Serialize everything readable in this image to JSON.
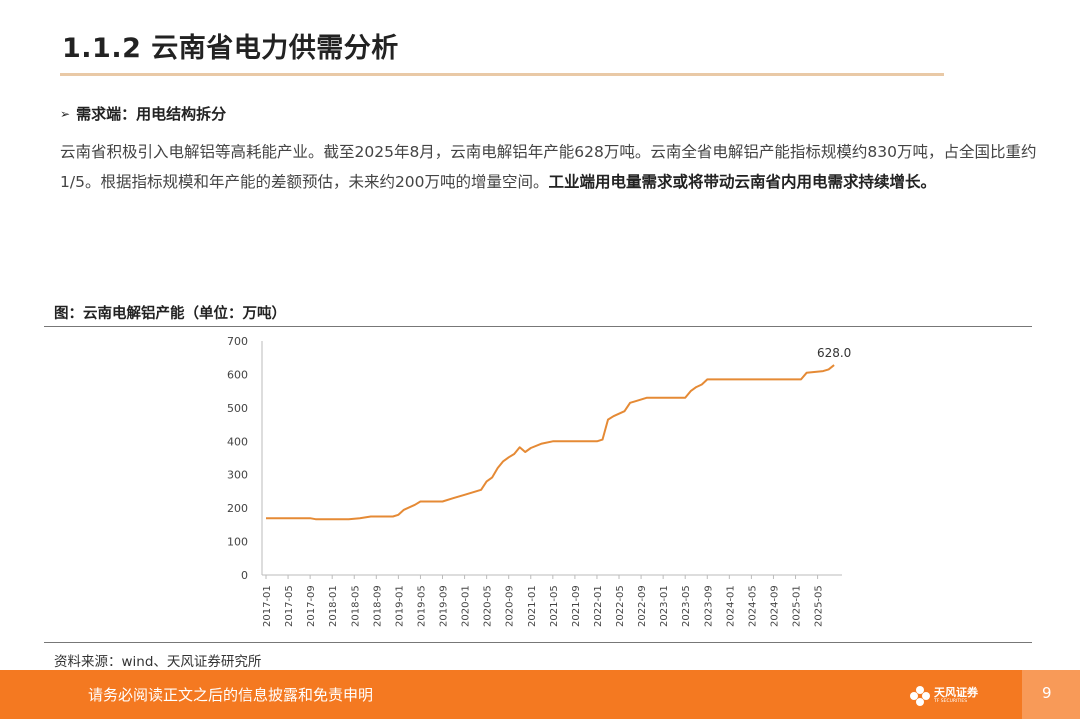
{
  "page": {
    "title": "1.1.2 云南省电力供需分析",
    "bullet": "需求端：用电结构拆分",
    "paragraph_normal": "云南省积极引入电解铝等高耗能产业。截至2025年8月，云南电解铝年产能628万吨。云南全省电解铝产能指标规模约830万吨，占全国比重约1/5。根据指标规模和年产能的差额预估，未来约200万吨的增量空间。",
    "paragraph_bold": "工业端用电量需求或将带动云南省内用电需求持续增长。",
    "figure_title": "图：云南电解铝产能（单位：万吨）",
    "source": "资料来源：wind、天风证券研究所",
    "footer_text": "请务必阅读正文之后的信息披露和免责申明",
    "logo_cn": "天风证券",
    "logo_en": "TF SECURITIES",
    "page_number": "9"
  },
  "colors": {
    "line": "#e58a35",
    "footer": "#f47921",
    "title_rule": "#e9c9a6"
  },
  "chart_data": {
    "type": "line",
    "title": "图：云南电解铝产能（单位：万吨）",
    "ylim": [
      0,
      700
    ],
    "yticks": [
      0,
      100,
      200,
      300,
      400,
      500,
      600,
      700
    ],
    "x_tick_labels": [
      "2017-01",
      "2017-05",
      "2017-09",
      "2018-01",
      "2018-05",
      "2018-09",
      "2019-01",
      "2019-05",
      "2019-09",
      "2020-01",
      "2020-05",
      "2020-09",
      "2021-01",
      "2021-05",
      "2021-09",
      "2022-01",
      "2022-05",
      "2022-09",
      "2023-01",
      "2023-05",
      "2023-09",
      "2024-01",
      "2024-05",
      "2024-09",
      "2025-01",
      "2025-05"
    ],
    "x_start": "2017-01",
    "x_end": "2025-08",
    "end_label": "628.0",
    "series": [
      {
        "points": [
          [
            "2017-01",
            170
          ],
          [
            "2017-09",
            170
          ],
          [
            "2017-10",
            167
          ],
          [
            "2018-04",
            167
          ],
          [
            "2018-06",
            170
          ],
          [
            "2018-08",
            175
          ],
          [
            "2018-12",
            175
          ],
          [
            "2019-01",
            180
          ],
          [
            "2019-02",
            195
          ],
          [
            "2019-04",
            210
          ],
          [
            "2019-05",
            220
          ],
          [
            "2019-09",
            220
          ],
          [
            "2019-11",
            230
          ],
          [
            "2020-01",
            240
          ],
          [
            "2020-04",
            255
          ],
          [
            "2020-05",
            280
          ],
          [
            "2020-06",
            292
          ],
          [
            "2020-07",
            320
          ],
          [
            "2020-08",
            340
          ],
          [
            "2020-09",
            352
          ],
          [
            "2020-10",
            362
          ],
          [
            "2020-11",
            382
          ],
          [
            "2020-12",
            368
          ],
          [
            "2021-01",
            380
          ],
          [
            "2021-03",
            393
          ],
          [
            "2021-05",
            400
          ],
          [
            "2021-09",
            400
          ],
          [
            "2022-01",
            400
          ],
          [
            "2022-02",
            405
          ],
          [
            "2022-03",
            465
          ],
          [
            "2022-04",
            475
          ],
          [
            "2022-06",
            490
          ],
          [
            "2022-07",
            515
          ],
          [
            "2022-08",
            520
          ],
          [
            "2022-10",
            530
          ],
          [
            "2022-12",
            530
          ],
          [
            "2023-02",
            530
          ],
          [
            "2023-05",
            530
          ],
          [
            "2023-06",
            550
          ],
          [
            "2023-07",
            562
          ],
          [
            "2023-08",
            570
          ],
          [
            "2023-09",
            585
          ],
          [
            "2024-01",
            585
          ],
          [
            "2024-05",
            585
          ],
          [
            "2024-09",
            585
          ],
          [
            "2024-12",
            585
          ],
          [
            "2025-02",
            585
          ],
          [
            "2025-03",
            605
          ],
          [
            "2025-06",
            610
          ],
          [
            "2025-07",
            615
          ],
          [
            "2025-08",
            628
          ]
        ]
      }
    ]
  }
}
